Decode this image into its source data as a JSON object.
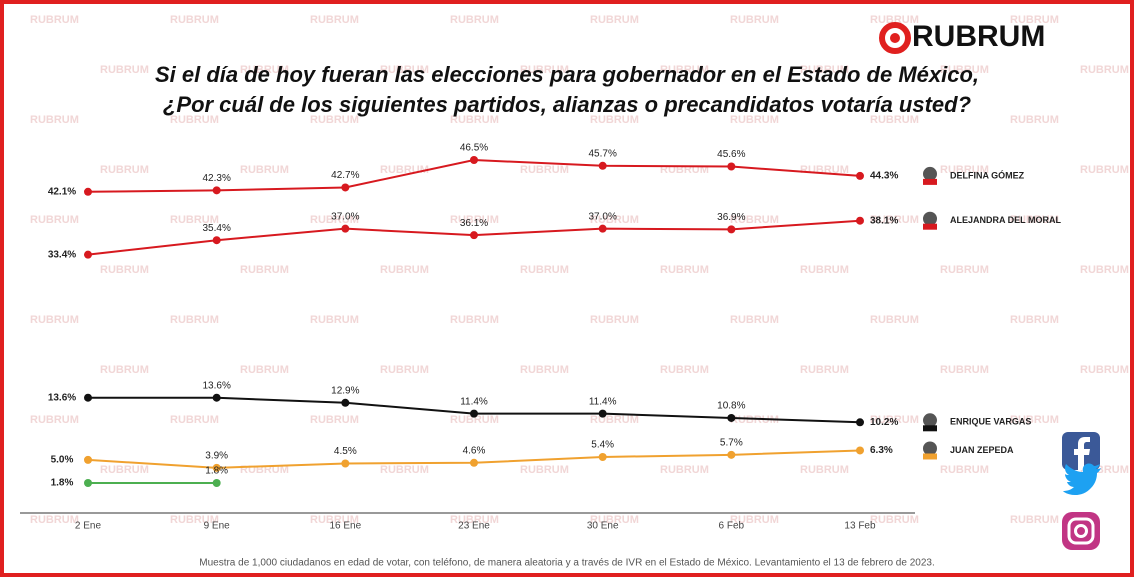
{
  "chart_data": {
    "type": "line",
    "logo": "RUBRUM",
    "title": "Si el día de hoy fueran las elecciones para gobernador en el Estado de México,",
    "subtitle": "¿Por cuál de los siguientes partidos, alianzas o precandidatos votaría usted?",
    "categories": [
      "2 Ene",
      "9 Ene",
      "16 Ene",
      "23 Ene",
      "30 Ene",
      "6 Feb",
      "13 Feb"
    ],
    "series": [
      {
        "name": "DELFINA GÓMEZ",
        "color": "#d7191f",
        "values": [
          42.1,
          42.3,
          42.7,
          46.5,
          45.7,
          45.6,
          44.3
        ],
        "value_labels": [
          "42.1%",
          "42.3%",
          "42.7%",
          "46.5%",
          "45.7%",
          "45.6%",
          "44.3%"
        ]
      },
      {
        "name": "ALEJANDRA DEL MORAL",
        "color": "#d7191f",
        "values": [
          33.4,
          35.4,
          37.0,
          36.1,
          37.0,
          36.9,
          38.1
        ],
        "value_labels": [
          "33.4%",
          "35.4%",
          "37.0%",
          "36.1%",
          "37.0%",
          "36.9%",
          "38.1%"
        ]
      },
      {
        "name": "ENRIQUE VARGAS",
        "color": "#111111",
        "values": [
          13.6,
          13.6,
          12.9,
          11.4,
          11.4,
          10.8,
          10.2
        ],
        "value_labels": [
          "13.6%",
          "13.6%",
          "12.9%",
          "11.4%",
          "11.4%",
          "10.8%",
          "10.2%"
        ]
      },
      {
        "name": "JUAN ZEPEDA",
        "color": "#f0a12f",
        "values": [
          5.0,
          3.9,
          4.5,
          4.6,
          5.4,
          5.7,
          6.3
        ],
        "value_labels": [
          "5.0%",
          "3.9%",
          "4.5%",
          "4.6%",
          "5.4%",
          "5.7%",
          "6.3%"
        ]
      },
      {
        "color": "#4caf50",
        "values": [
          1.8,
          1.8,
          null,
          null,
          null,
          null,
          null
        ],
        "value_labels": [
          "1.8%",
          "1.8%",
          null,
          null,
          null,
          null,
          null
        ]
      }
    ],
    "note": "Muestra de 1,000 ciudadanos en edad de votar, con teléfono, de manera aleatoria y a través de IVR en el Estado de México. Levantamiento el 13 de febrero de 2023."
  }
}
